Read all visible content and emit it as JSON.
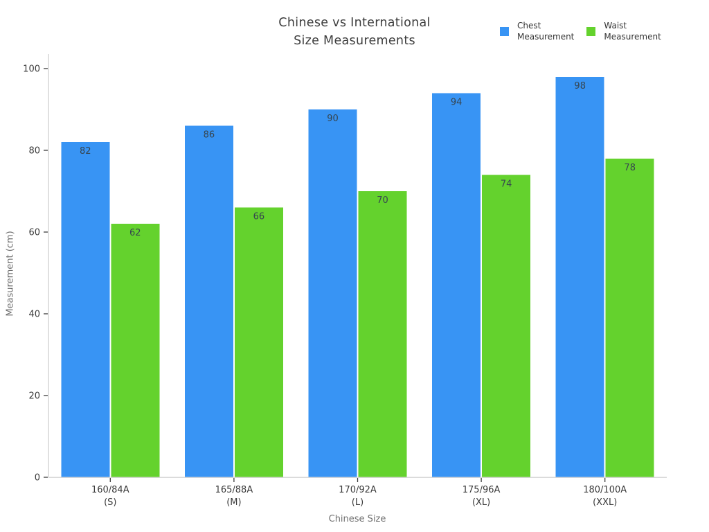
{
  "chart_data": {
    "type": "bar",
    "title": "Chinese vs International\nSize Measurements",
    "categories": [
      [
        "160/84A",
        "(S)"
      ],
      [
        "165/88A",
        "(M)"
      ],
      [
        "170/92A",
        "(L)"
      ],
      [
        "175/96A",
        "(XL)"
      ],
      [
        "180/100A",
        "(XXL)"
      ]
    ],
    "series": [
      {
        "name": "Chest\nMeasurement",
        "key": "chest-measurement",
        "color": "#3894f4",
        "values": [
          82,
          86,
          90,
          94,
          98
        ]
      },
      {
        "name": "Waist\nMeasurement",
        "key": "waist-measurement",
        "color": "#64d22d",
        "values": [
          62,
          66,
          70,
          74,
          78
        ]
      }
    ],
    "xlabel": "Chinese Size",
    "ylabel": "Measurement (cm)",
    "ylim": [
      0,
      104
    ],
    "yticks": [
      0,
      20,
      40,
      60,
      80,
      100
    ],
    "grid": false,
    "legend_position": "top-right",
    "bar_value_labels": true,
    "colors": {
      "axis_line": "#d7d7d7",
      "tick_mark": "#3b3b3b",
      "tick_label": "#3a3a3a",
      "bar_value_label": "#36454f",
      "axis_title": "#6f6f6f",
      "title": "#3d3d3d",
      "background": "#ffffff"
    }
  }
}
